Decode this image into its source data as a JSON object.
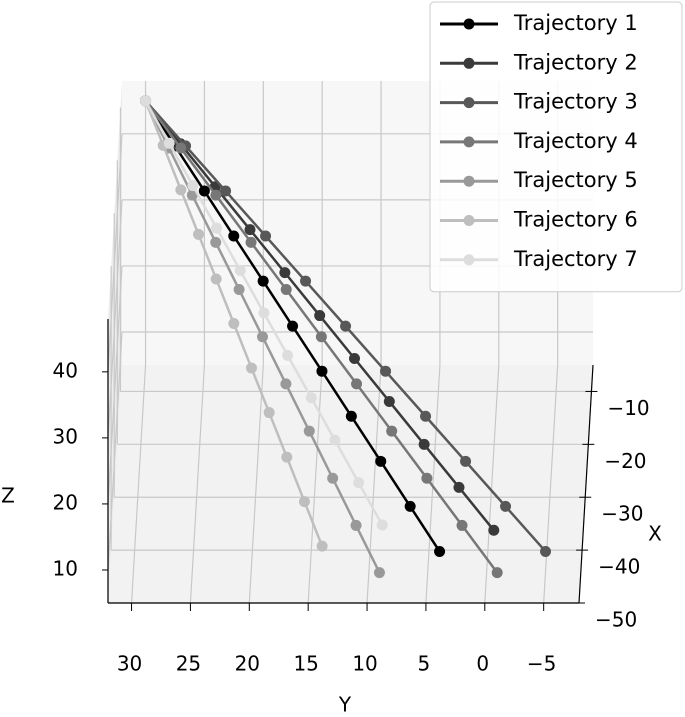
{
  "chart_data": {
    "type": "line3d",
    "x_label": "X",
    "y_label": "Y",
    "z_label": "Z",
    "xlim": [
      -50,
      -5
    ],
    "ylim": [
      -8,
      32
    ],
    "zlim": [
      5,
      48
    ],
    "xticks": [
      {
        "value": -10,
        "label": "−10"
      },
      {
        "value": -20,
        "label": "−20"
      },
      {
        "value": -30,
        "label": "−30"
      },
      {
        "value": -40,
        "label": "−40"
      },
      {
        "value": -50,
        "label": "−50"
      }
    ],
    "yticks": [
      30,
      25,
      20,
      15,
      10,
      5,
      0,
      {
        "value": -5,
        "label": "−5"
      }
    ],
    "zticks": [
      10,
      20,
      30,
      40
    ],
    "grid": true,
    "legend": "upper right",
    "series": [
      {
        "name": "Trajectory 1",
        "color": "#000000",
        "x": [
          -5,
          -8.9,
          -12.8,
          -16.7,
          -20.6,
          -24.5,
          -28.4,
          -32.3,
          -36.2,
          -40.1,
          -44
        ],
        "y": [
          30,
          27.4,
          24.8,
          22.2,
          19.6,
          17,
          14.4,
          11.8,
          9.2,
          6.6,
          4
        ],
        "z": [
          45,
          41.3,
          37.6,
          33.9,
          30.2,
          26.5,
          22.8,
          19.1,
          15.4,
          11.7,
          8
        ]
      },
      {
        "name": "Trajectory 2",
        "color": "#3a3a3a",
        "x": [
          -5,
          -8.5,
          -12,
          -15.5,
          -19,
          -22.5,
          -26,
          -29.5,
          -33,
          -36.5,
          -40
        ],
        "y": [
          30,
          26.95,
          23.9,
          20.85,
          17.8,
          14.75,
          11.7,
          8.65,
          5.6,
          2.55,
          -0.5
        ],
        "z": [
          45,
          41.3,
          37.6,
          33.9,
          30.2,
          26.5,
          22.8,
          19.1,
          15.4,
          11.7,
          8
        ]
      },
      {
        "name": "Trajectory 3",
        "color": "#585858",
        "x": [
          -5,
          -8.9,
          -12.8,
          -16.7,
          -20.6,
          -24.5,
          -28.4,
          -32.3,
          -36.2,
          -40.1,
          -44
        ],
        "y": [
          30,
          26.5,
          23,
          19.5,
          16,
          12.5,
          9,
          5.5,
          2,
          -1.5,
          -5
        ],
        "z": [
          45,
          41.3,
          37.6,
          33.9,
          30.2,
          26.5,
          22.8,
          19.1,
          15.4,
          11.7,
          8
        ]
      },
      {
        "name": "Trajectory 4",
        "color": "#777777",
        "x": [
          -5,
          -9.3,
          -13.6,
          -17.9,
          -22.2,
          -26.5,
          -30.8,
          -35.1,
          -39.4,
          -43.7,
          -48
        ],
        "y": [
          30,
          26.9,
          23.8,
          20.7,
          17.6,
          14.5,
          11.4,
          8.3,
          5.2,
          2.1,
          -1
        ],
        "z": [
          45,
          41.3,
          37.6,
          33.9,
          30.2,
          26.5,
          22.8,
          19.1,
          15.4,
          11.7,
          8
        ]
      },
      {
        "name": "Trajectory 5",
        "color": "#999999",
        "x": [
          -5,
          -9.3,
          -13.6,
          -17.9,
          -22.2,
          -26.5,
          -30.8,
          -35.1,
          -39.4,
          -43.7,
          -48
        ],
        "y": [
          30,
          27.9,
          25.8,
          23.7,
          21.6,
          19.5,
          17.4,
          15.3,
          13.2,
          11.1,
          9
        ],
        "z": [
          45,
          41.3,
          37.6,
          33.9,
          30.2,
          26.5,
          22.8,
          19.1,
          15.4,
          11.7,
          8
        ]
      },
      {
        "name": "Trajectory 6",
        "color": "#bebebe",
        "x": [
          -5,
          -8.8,
          -12.6,
          -16.4,
          -20.2,
          -24,
          -27.8,
          -31.6,
          -35.4,
          -39.2,
          -43
        ],
        "y": [
          30,
          28.4,
          26.8,
          25.2,
          23.6,
          22,
          20.4,
          18.8,
          17.2,
          15.6,
          14
        ],
        "z": [
          45,
          41.3,
          37.6,
          33.9,
          30.2,
          26.5,
          22.8,
          19.1,
          15.4,
          11.7,
          8
        ]
      },
      {
        "name": "Trajectory 7",
        "color": "#dddddd",
        "x": [
          -5,
          -8.4,
          -11.8,
          -15.2,
          -18.6,
          -22,
          -25.4,
          -28.8,
          -32.2,
          -35.6,
          -39
        ],
        "y": [
          30,
          27.9,
          25.8,
          23.7,
          21.6,
          19.5,
          17.4,
          15.3,
          13.2,
          11.1,
          9
        ],
        "z": [
          45,
          41.3,
          37.6,
          33.9,
          30.2,
          26.5,
          22.8,
          19.1,
          15.4,
          11.7,
          8
        ]
      }
    ]
  }
}
